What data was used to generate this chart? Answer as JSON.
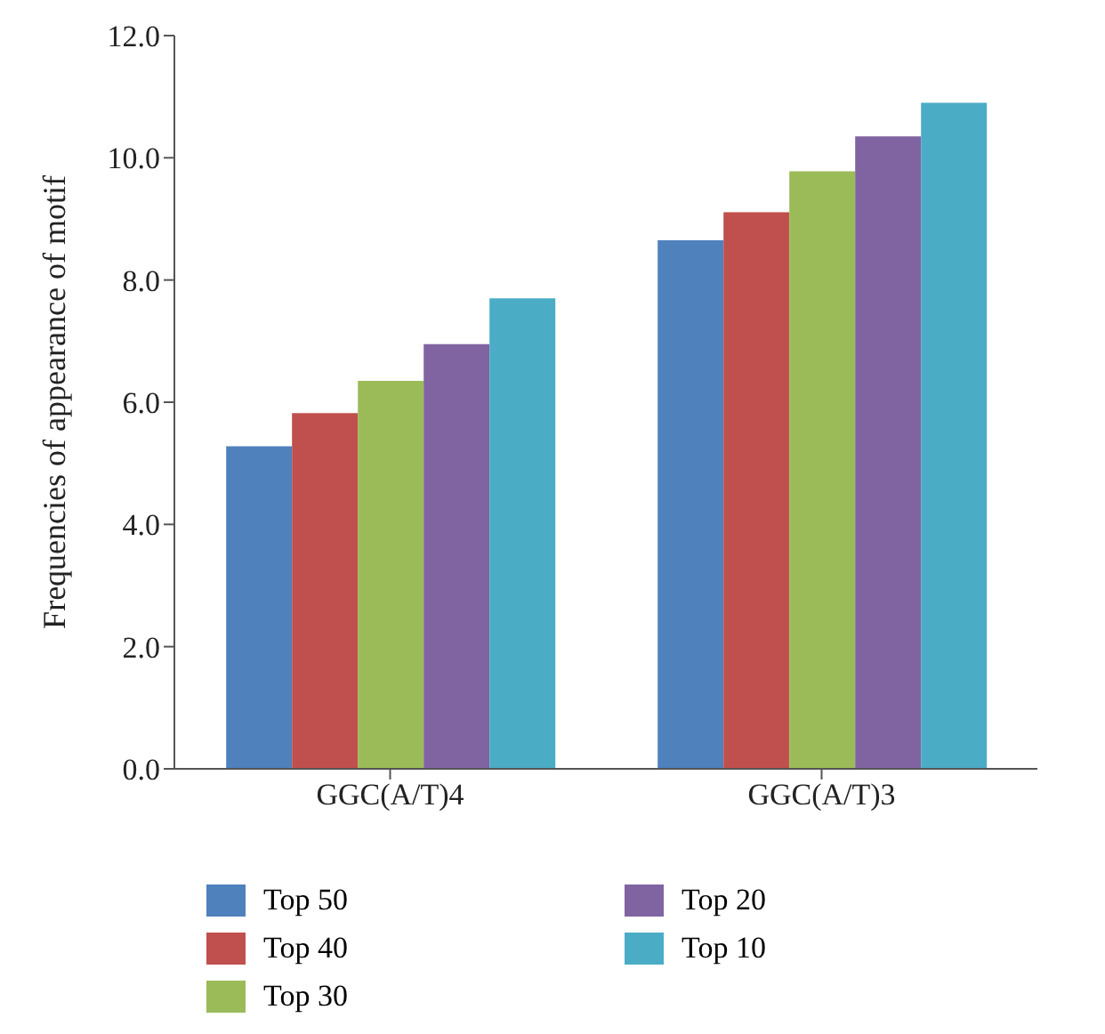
{
  "chart_data": {
    "type": "bar",
    "ylabel": "Frequencies of appearance of motif",
    "categories": [
      "GGC(A/T)4",
      "GGC(A/T)3"
    ],
    "series": [
      {
        "name": "Top 50",
        "color": "#4f81bd",
        "values": [
          5.28,
          8.65
        ]
      },
      {
        "name": "Top 40",
        "color": "#c0504d",
        "values": [
          5.82,
          9.11
        ]
      },
      {
        "name": "Top 30",
        "color": "#9bbb59",
        "values": [
          6.35,
          9.78
        ]
      },
      {
        "name": "Top 20",
        "color": "#8064a2",
        "values": [
          6.95,
          10.35
        ]
      },
      {
        "name": "Top 10",
        "color": "#4bacc6",
        "values": [
          7.7,
          10.9
        ]
      }
    ],
    "ylim": [
      0,
      12
    ],
    "yticks": [
      {
        "value": 0,
        "label": "0.0"
      },
      {
        "value": 2,
        "label": "2.0"
      },
      {
        "value": 4,
        "label": "4.0"
      },
      {
        "value": 6,
        "label": "6.0"
      },
      {
        "value": 8,
        "label": "8.0"
      },
      {
        "value": 10,
        "label": "10.0"
      },
      {
        "value": 12,
        "label": "12.0"
      }
    ],
    "grid": false,
    "legend": "bottom"
  }
}
